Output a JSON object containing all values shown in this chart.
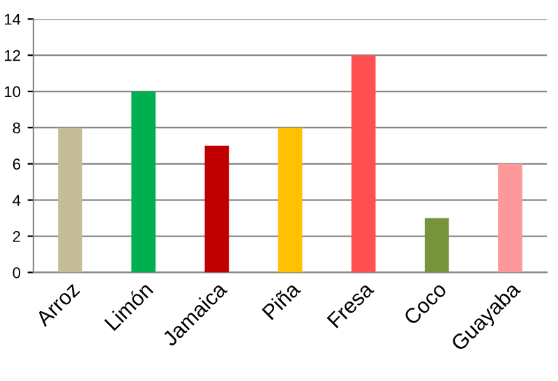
{
  "chart_data": {
    "type": "bar",
    "categories": [
      "Arroz",
      "Limón",
      "Jamaica",
      "Piña",
      "Fresa",
      "Coco",
      "Guayaba"
    ],
    "values": [
      8,
      10,
      7,
      8,
      12,
      3,
      6
    ],
    "colors": [
      "#c4bd97",
      "#00b050",
      "#c00000",
      "#ffc000",
      "#ff5050",
      "#77933c",
      "#ff9999"
    ],
    "ylim": [
      0,
      14
    ],
    "yticks": [
      0,
      2,
      4,
      6,
      8,
      10,
      12,
      14
    ],
    "grid": "y",
    "legend": false
  }
}
